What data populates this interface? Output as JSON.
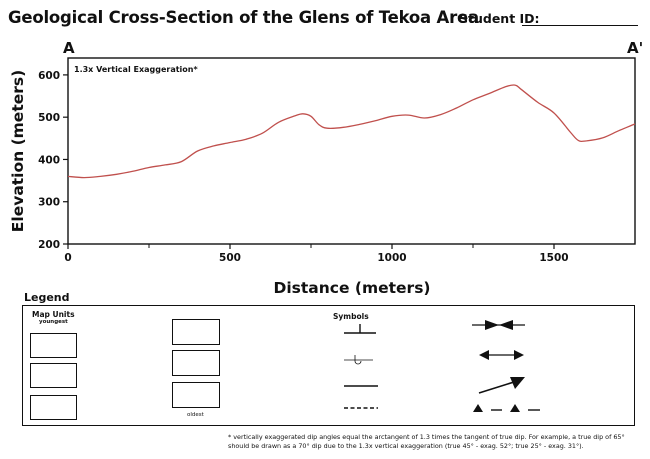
{
  "header": {
    "title": "Geological Cross-Section of the Glens of Tekoa Area",
    "student_id_label": "Student ID:"
  },
  "section": {
    "start_label": "A",
    "end_label": "A'",
    "exaggeration_note": "1.3x Vertical Exaggeration*"
  },
  "chart_data": {
    "type": "line",
    "title": "",
    "xlabel": "Distance (meters)",
    "ylabel": "Elevation (meters)",
    "xlim": [
      0,
      1750
    ],
    "ylim": [
      200,
      640
    ],
    "x_ticks": [
      0,
      500,
      1000,
      1500
    ],
    "x_minor_ticks": [
      250,
      750,
      1250
    ],
    "y_ticks": [
      200,
      300,
      400,
      500,
      600
    ],
    "line_color": "#c0504d",
    "grid": false,
    "series": [
      {
        "x": [
          0,
          50,
          100,
          150,
          200,
          250,
          300,
          350,
          400,
          450,
          500,
          550,
          600,
          650,
          700,
          725,
          750,
          775,
          800,
          850,
          900,
          950,
          1000,
          1050,
          1100,
          1150,
          1200,
          1250,
          1300,
          1350,
          1380,
          1400,
          1450,
          1500,
          1550,
          1575,
          1600,
          1650,
          1700,
          1750
        ],
        "y": [
          360,
          357,
          360,
          365,
          372,
          381,
          387,
          395,
          420,
          432,
          440,
          448,
          462,
          488,
          503,
          508,
          502,
          482,
          474,
          476,
          483,
          492,
          502,
          505,
          498,
          506,
          522,
          541,
          556,
          572,
          576,
          565,
          535,
          510,
          465,
          445,
          444,
          451,
          468,
          484
        ]
      }
    ]
  },
  "legend": {
    "title": "Legend",
    "map_units_title": "Map Units",
    "youngest_label": "youngest",
    "oldest_label": "oldest",
    "symbols_title": "Symbols",
    "symbol_icons": [
      "strike-dip-icon",
      "overturned-bed-icon",
      "contact-line-icon",
      "inferred-contact-icon",
      "syncline-icon",
      "anticline-icon",
      "plunge-arrow-icon",
      "thrust-fault-icon"
    ]
  },
  "footnote": "* vertically exaggerated dip angles equal the arctangent of 1.3 times the tangent of true dip. For example, a true dip of 65° should be drawn as a 70° dip due to the 1.3x vertical exaggeration (true 45° - exag. 52°; true 25° - exag. 31°)."
}
